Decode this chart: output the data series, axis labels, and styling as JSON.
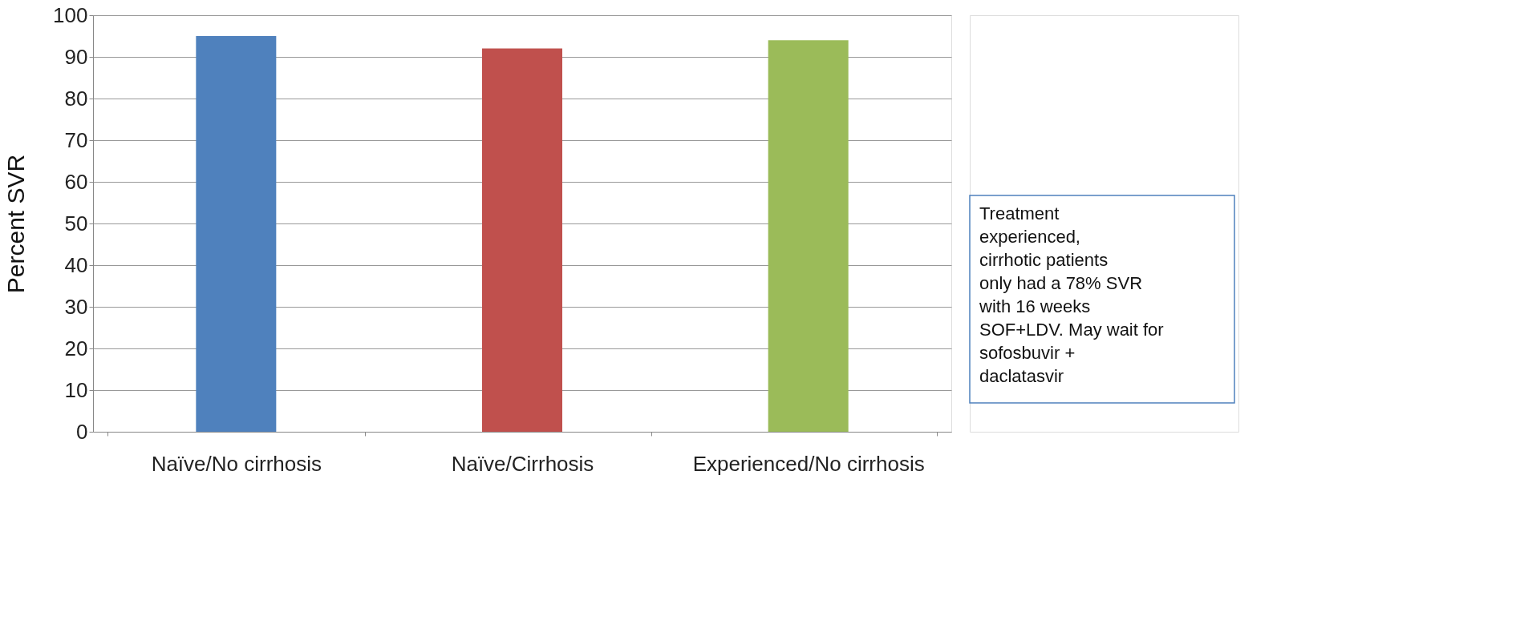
{
  "chart_data": {
    "type": "bar",
    "ylabel": "Percent SVR",
    "categories": [
      "Naïve/No cirrhosis",
      "Naïve/Cirrhosis",
      "Experienced/No cirrhosis"
    ],
    "values": [
      95,
      92,
      94
    ],
    "colors": [
      "#4f81bd",
      "#c0504d",
      "#9bbb59"
    ],
    "ylim": [
      0,
      100
    ],
    "yticks": [
      0,
      10,
      20,
      30,
      40,
      50,
      60,
      70,
      80,
      90,
      100
    ],
    "grid": "y",
    "annotations": [
      "Treatment experienced, cirrhotic patients only had a 78% SVR with 16 weeks SOF+LDV. May wait for sofosbuvir + daclatasvir"
    ]
  }
}
